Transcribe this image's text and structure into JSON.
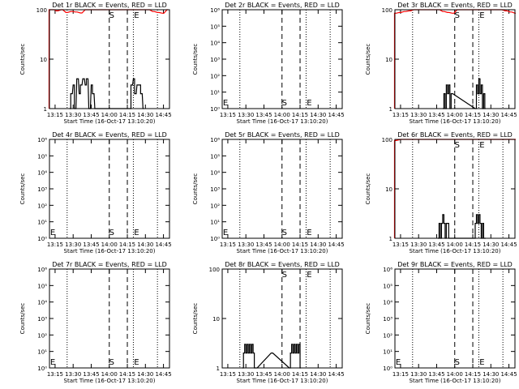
{
  "colors": {
    "events": "#000000",
    "lld": "#ff0000",
    "background": "#ffffff",
    "axes": "#000000"
  },
  "marker_times": {
    "S": "14:00",
    "split": "14:15",
    "E": "14:20"
  },
  "chart_data": [
    {
      "type": "line",
      "title": "Det 1r  BLACK = Events, RED = LLD",
      "xlabel": "Start Time (16-Oct-17 13:10:20)",
      "ylabel": "Counts/sec",
      "scale": "log",
      "ylim": [
        1,
        100
      ],
      "yticks": [
        "1",
        "10",
        "100"
      ],
      "xticks": [
        "13:15",
        "13:30",
        "13:45",
        "14:00",
        "14:15",
        "14:30",
        "14:45"
      ],
      "markers": [
        "S",
        "E"
      ],
      "series": [
        {
          "name": "Events",
          "color": "#000000",
          "x": [
            "13:27",
            "13:28",
            "13:30",
            "13:31",
            "13:33",
            "13:35",
            "13:36",
            "13:38",
            "13:40",
            "13:41",
            "13:43",
            "13:45",
            "13:46",
            "13:48",
            "14:17",
            "14:18",
            "14:20",
            "14:21",
            "14:23",
            "14:25",
            "14:26",
            "14:28"
          ],
          "values": [
            1,
            2,
            3,
            1,
            4,
            2,
            3,
            4,
            3,
            4,
            1,
            3,
            2,
            1,
            1,
            3,
            4,
            2,
            3,
            3,
            2,
            1
          ]
        },
        {
          "name": "LLD",
          "color": "#ff0000",
          "x": [
            "13:10",
            "13:13",
            "13:16",
            "13:20",
            "13:24",
            "13:28",
            "13:32",
            "13:36",
            "13:40",
            "13:44",
            "13:48",
            "13:52",
            "13:56",
            "14:00",
            "14:04",
            "14:08",
            "14:12",
            "14:16",
            "14:20",
            "14:24",
            "14:28",
            "14:32",
            "14:36",
            "14:40",
            "14:44",
            "14:48"
          ],
          "values": [
            100,
            100,
            95,
            100,
            88,
            92,
            90,
            86,
            100,
            100,
            100,
            100,
            100,
            100,
            100,
            100,
            100,
            100,
            100,
            100,
            100,
            100,
            92,
            88,
            85,
            100
          ]
        }
      ]
    },
    {
      "type": "line",
      "title": "Det 2r  BLACK = Events, RED = LLD",
      "xlabel": "Start Time (16-Oct-17 13:10:20)",
      "ylabel": "Counts/sec",
      "scale": "log",
      "ylim": [
        1,
        1000000
      ],
      "yticks": [
        "10⁰",
        "10¹",
        "10²",
        "10³",
        "10⁴",
        "10⁵",
        "10⁶"
      ],
      "xticks": [
        "13:15",
        "13:30",
        "13:45",
        "14:00",
        "14:15",
        "14:30",
        "14:45"
      ],
      "markers": [
        "S",
        "E"
      ],
      "series": []
    },
    {
      "type": "line",
      "title": "Det 3r  BLACK = Events, RED = LLD",
      "xlabel": "Start Time (16-Oct-17 13:10:20)",
      "ylabel": "Counts/sec",
      "scale": "log",
      "ylim": [
        1,
        100
      ],
      "yticks": [
        "1",
        "10",
        "100"
      ],
      "xticks": [
        "13:15",
        "13:30",
        "13:45",
        "14:00",
        "14:15",
        "14:30",
        "14:45"
      ],
      "markers": [
        "S",
        "E"
      ],
      "series": [
        {
          "name": "Events",
          "color": "#000000",
          "x": [
            "13:50",
            "13:51",
            "13:52",
            "13:53",
            "13:54",
            "13:55",
            "13:56",
            "13:57",
            "14:17",
            "14:18",
            "14:19",
            "14:20",
            "14:21",
            "14:22",
            "14:23",
            "14:24",
            "14:25"
          ],
          "values": [
            1,
            2,
            1,
            3,
            2,
            3,
            1,
            2,
            1,
            3,
            2,
            4,
            2,
            3,
            1,
            2,
            1
          ]
        },
        {
          "name": "LLD",
          "color": "#ff0000",
          "x": [
            "13:10",
            "13:14",
            "13:18",
            "13:22",
            "13:26",
            "13:30",
            "13:34",
            "13:38",
            "13:42",
            "13:46",
            "13:50",
            "13:54",
            "13:58",
            "14:02",
            "14:06",
            "14:10",
            "14:14",
            "14:18",
            "14:22",
            "14:26",
            "14:30",
            "14:34",
            "14:38",
            "14:42",
            "14:46",
            "14:50"
          ],
          "values": [
            85,
            88,
            92,
            95,
            100,
            100,
            100,
            100,
            100,
            100,
            92,
            88,
            85,
            100,
            100,
            100,
            100,
            100,
            100,
            100,
            100,
            100,
            100,
            95,
            90,
            85
          ]
        }
      ]
    },
    {
      "type": "line",
      "title": "Det 4r  BLACK = Events, RED = LLD",
      "xlabel": "Start Time (16-Oct-17 13:10:20)",
      "ylabel": "Counts/sec",
      "scale": "log",
      "ylim": [
        1,
        1000000
      ],
      "yticks": [
        "10⁰",
        "10¹",
        "10²",
        "10³",
        "10⁴",
        "10⁵",
        "10⁶"
      ],
      "xticks": [
        "13:15",
        "13:30",
        "13:45",
        "14:00",
        "14:15",
        "14:30",
        "14:45"
      ],
      "markers": [
        "S",
        "E"
      ],
      "series": []
    },
    {
      "type": "line",
      "title": "Det 5r  BLACK = Events, RED = LLD",
      "xlabel": "Start Time (16-Oct-17 13:10:20)",
      "ylabel": "Counts/sec",
      "scale": "log",
      "ylim": [
        1,
        1000000
      ],
      "yticks": [
        "10⁰",
        "10¹",
        "10²",
        "10³",
        "10⁴",
        "10⁵",
        "10⁶"
      ],
      "xticks": [
        "13:15",
        "13:30",
        "13:45",
        "14:00",
        "14:15",
        "14:30",
        "14:45"
      ],
      "markers": [
        "S",
        "E"
      ],
      "series": []
    },
    {
      "type": "line",
      "title": "Det 6r  BLACK = Events, RED = LLD",
      "xlabel": "Start Time (16-Oct-17 13:10:20)",
      "ylabel": "Counts/sec",
      "scale": "log",
      "ylim": [
        1,
        100
      ],
      "yticks": [
        "1",
        "10",
        "100"
      ],
      "xticks": [
        "13:15",
        "13:30",
        "13:45",
        "14:00",
        "14:15",
        "14:30",
        "14:45"
      ],
      "markers": [
        "S",
        "E"
      ],
      "series": [
        {
          "name": "Events",
          "color": "#000000",
          "x": [
            "13:46",
            "13:47",
            "13:48",
            "13:49",
            "13:50",
            "13:51",
            "13:52",
            "13:53",
            "13:54",
            "13:55",
            "13:56",
            "14:16",
            "14:17",
            "14:18",
            "14:19",
            "14:20",
            "14:21",
            "14:22",
            "14:23",
            "14:24",
            "14:25"
          ],
          "values": [
            1,
            2,
            1,
            2,
            3,
            2,
            1,
            2,
            2,
            1,
            1,
            1,
            2,
            3,
            2,
            3,
            2,
            1,
            2,
            1,
            1
          ]
        },
        {
          "name": "LLD",
          "color": "#ff0000",
          "x": [
            "13:10",
            "13:15",
            "13:20",
            "13:25",
            "13:30",
            "13:35",
            "13:40",
            "13:45",
            "13:50",
            "13:55",
            "14:00",
            "14:05",
            "14:10",
            "14:15",
            "14:20",
            "14:25",
            "14:30",
            "14:35",
            "14:40",
            "14:45",
            "14:50"
          ],
          "values": [
            95,
            100,
            100,
            100,
            100,
            100,
            100,
            100,
            100,
            100,
            100,
            100,
            100,
            100,
            100,
            100,
            100,
            100,
            100,
            100,
            100
          ]
        }
      ]
    },
    {
      "type": "line",
      "title": "Det 7r  BLACK = Events, RED = LLD",
      "xlabel": "Start Time (16-Oct-17 13:10:20)",
      "ylabel": "Counts/sec",
      "scale": "log",
      "ylim": [
        1,
        1000000
      ],
      "yticks": [
        "10⁰",
        "10¹",
        "10²",
        "10³",
        "10⁴",
        "10⁵",
        "10⁶"
      ],
      "xticks": [
        "13:15",
        "13:30",
        "13:45",
        "14:00",
        "14:15",
        "14:30",
        "14:45"
      ],
      "markers": [
        "S",
        "E"
      ],
      "series": []
    },
    {
      "type": "line",
      "title": "Det 8r  BLACK = Events, RED = LLD",
      "xlabel": "Start Time (16-Oct-17 13:10:20)",
      "ylabel": "Counts/sec",
      "scale": "log",
      "ylim": [
        1,
        100
      ],
      "yticks": [
        "1",
        "10",
        "100"
      ],
      "xticks": [
        "13:15",
        "13:30",
        "13:45",
        "14:00",
        "14:15",
        "14:30",
        "14:45"
      ],
      "markers": [
        "S",
        "E"
      ],
      "series": [
        {
          "name": "Events",
          "color": "#000000",
          "x": [
            "13:27",
            "13:28",
            "13:29",
            "13:30",
            "13:31",
            "13:32",
            "13:33",
            "13:34",
            "13:35",
            "13:36",
            "13:37",
            "13:38",
            "13:51",
            "14:06",
            "14:07",
            "14:08",
            "14:09",
            "14:10",
            "14:11",
            "14:12",
            "14:13",
            "14:14",
            "14:15"
          ],
          "values": [
            1,
            2,
            3,
            2,
            3,
            2,
            3,
            2,
            3,
            2,
            1,
            1,
            2,
            1,
            2,
            3,
            2,
            3,
            2,
            3,
            2,
            3,
            1
          ]
        }
      ]
    },
    {
      "type": "line",
      "title": "Det 9r  BLACK = Events, RED = LLD",
      "xlabel": "Start Time (16-Oct-17 13:10:20)",
      "ylabel": "Counts/sec",
      "scale": "log",
      "ylim": [
        1,
        1000000
      ],
      "yticks": [
        "10⁰",
        "10¹",
        "10²",
        "10³",
        "10⁴",
        "10⁵",
        "10⁶"
      ],
      "xticks": [
        "13:15",
        "13:30",
        "13:45",
        "14:00",
        "14:15",
        "14:30",
        "14:45"
      ],
      "markers": [
        "S",
        "E"
      ],
      "series": []
    }
  ]
}
